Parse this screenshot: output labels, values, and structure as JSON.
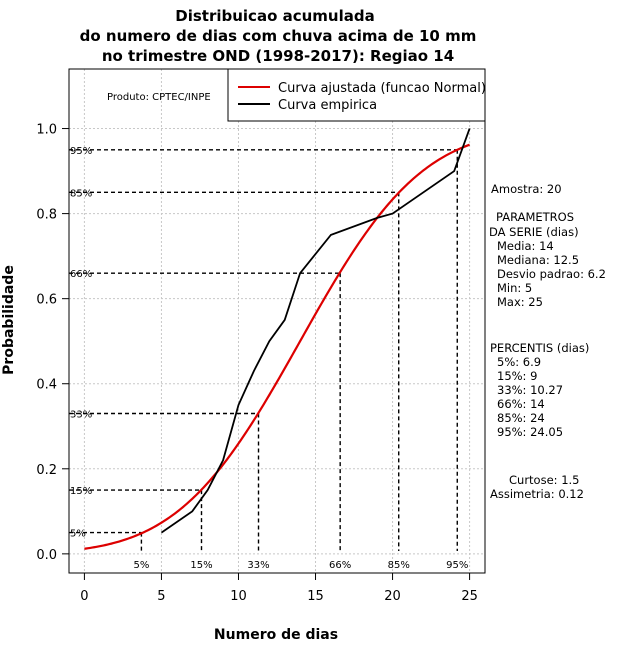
{
  "chart_data": {
    "type": "line",
    "title": [
      "Distribuicao acumulada",
      "do numero de dias com chuva acima de 10 mm",
      "no trimestre OND (1998-2017): Regiao 14"
    ],
    "xlabel": "Numero de dias",
    "ylabel": "Probabilidade",
    "xlim": [
      -1,
      26
    ],
    "ylim": [
      -0.045,
      1.14
    ],
    "xticks": [
      0,
      5,
      10,
      15,
      20,
      25
    ],
    "xtick_labels": [
      "0",
      "5",
      "10",
      "15",
      "20",
      "25"
    ],
    "yticks": [
      0,
      0.2,
      0.4,
      0.6,
      0.8,
      1.0
    ],
    "ytick_labels": [
      "0.0",
      "0.2",
      "0.4",
      "0.6",
      "0.8",
      "1.0"
    ],
    "product_label": "Produto: CPTEC/INPE",
    "fitted_mean": 14,
    "fitted_sd": 6.2,
    "legend": [
      {
        "label": "Curva ajustada (funcao Normal)",
        "color": "#dd0000"
      },
      {
        "label": "Curva empirica",
        "color": "#000000"
      }
    ],
    "series": [
      {
        "name": "Curva ajustada (funcao Normal)",
        "color": "#dd0000",
        "kind": "normal_cdf",
        "x_range": [
          0,
          25
        ]
      },
      {
        "name": "Curva empirica",
        "color": "#000000",
        "x": [
          5,
          7,
          8,
          9,
          10,
          11,
          12,
          13,
          14,
          16,
          19,
          20,
          24,
          25
        ],
        "values": [
          0.05,
          0.1,
          0.15,
          0.22,
          0.35,
          0.43,
          0.5,
          0.55,
          0.66,
          0.75,
          0.79,
          0.8,
          0.9,
          1.0
        ]
      }
    ],
    "percentile_lines": [
      {
        "label": "5%",
        "p": 0.05,
        "x": 3.7
      },
      {
        "label": "15%",
        "p": 0.15,
        "x": 7.6
      },
      {
        "label": "33%",
        "p": 0.33,
        "x": 11.3
      },
      {
        "label": "66%",
        "p": 0.66,
        "x": 16.6
      },
      {
        "label": "85%",
        "p": 0.85,
        "x": 20.4
      },
      {
        "label": "95%",
        "p": 0.95,
        "x": 24.2
      }
    ],
    "side_panel": {
      "amostra": "Amostra: 20",
      "param_title": [
        "PARAMETROS",
        "DA SERIE (dias)"
      ],
      "params": [
        "Media: 14",
        "Mediana: 12.5",
        "Desvio padrao: 6.2",
        "Min: 5",
        "Max: 25"
      ],
      "perc_title": "PERCENTIS (dias)",
      "percentis": [
        "5%: 6.9",
        "15%: 9",
        "33%: 10.27",
        "66%: 14",
        "85%: 24",
        "95%: 24.05"
      ],
      "curtose": "Curtose: 1.5",
      "assimetria": "Assimetria: 0.12"
    }
  }
}
